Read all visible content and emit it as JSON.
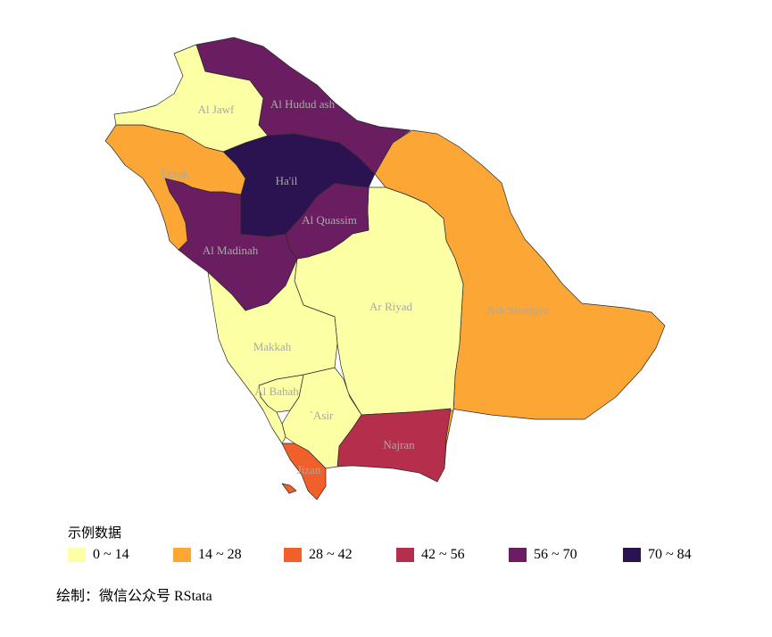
{
  "map": {
    "regions": [
      {
        "id": "al-jawf",
        "label": "Al Jawf",
        "class": 0
      },
      {
        "id": "al-hudud",
        "label": "Al Hudud ash",
        "class": 4
      },
      {
        "id": "tabuk",
        "label": "Tabuk",
        "class": 1
      },
      {
        "id": "hail",
        "label": "Ha'il",
        "class": 5
      },
      {
        "id": "al-quassim",
        "label": "Al Quassim",
        "class": 4
      },
      {
        "id": "al-madinah",
        "label": "Al Madinah",
        "class": 4
      },
      {
        "id": "ash-sharqiya",
        "label": "Ash Sharqiya",
        "class": 1
      },
      {
        "id": "ar-riyad",
        "label": "Ar Riyad",
        "class": 0
      },
      {
        "id": "makkah",
        "label": "Makkah",
        "class": 0
      },
      {
        "id": "al-bahah",
        "label": "Al Bahah",
        "class": 0
      },
      {
        "id": "asir",
        "label": "`Asir",
        "class": 0
      },
      {
        "id": "najran",
        "label": "Najran",
        "class": 3
      },
      {
        "id": "jizan",
        "label": "Jizan",
        "class": 2
      }
    ]
  },
  "legend": {
    "title": "示例数据",
    "items": [
      {
        "label": "0 ~ 14",
        "color": "#FCFFA4"
      },
      {
        "label": "14 ~ 28",
        "color": "#FCA636"
      },
      {
        "label": "28 ~ 42",
        "color": "#F1602A"
      },
      {
        "label": "42 ~ 56",
        "color": "#B52F4C"
      },
      {
        "label": "56 ~ 70",
        "color": "#6B1D61"
      },
      {
        "label": "70 ~ 84",
        "color": "#2B1250"
      }
    ]
  },
  "caption": "绘制：微信公众号 RStata"
}
